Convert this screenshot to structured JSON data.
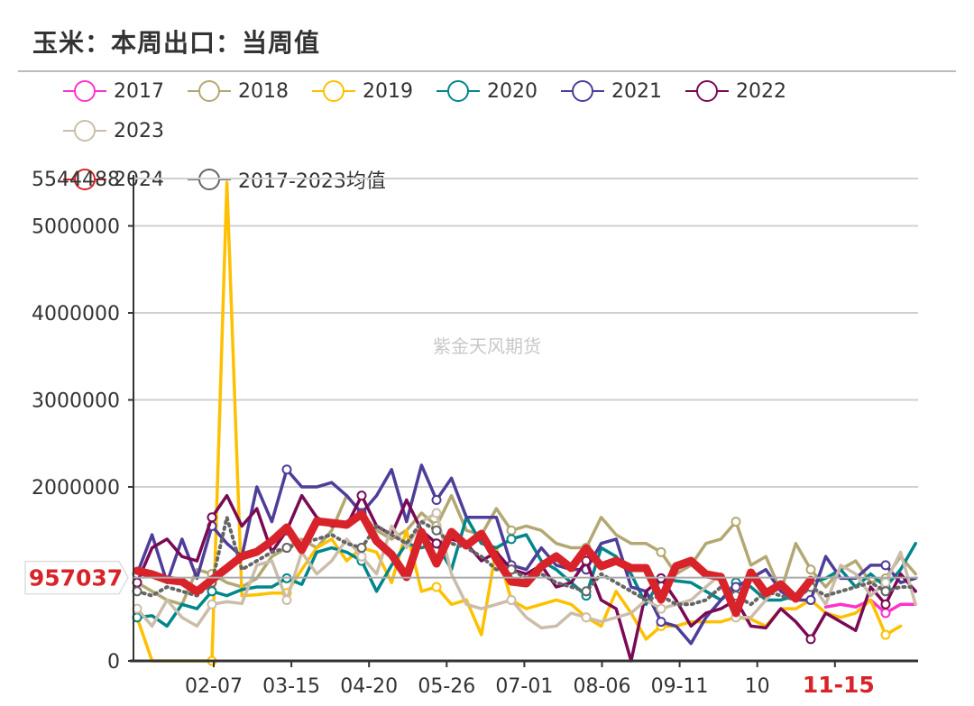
{
  "title": "玉米：本周出口：当周值",
  "watermark": "紫金天风期货",
  "legend": [
    {
      "name": "2017",
      "color": "#FF33CC"
    },
    {
      "name": "2018",
      "color": "#B3A872"
    },
    {
      "name": "2019",
      "color": "#FFC000"
    },
    {
      "name": "2020",
      "color": "#00868B"
    },
    {
      "name": "2021",
      "color": "#4E3D99"
    },
    {
      "name": "2022",
      "color": "#7A0A55"
    },
    {
      "name": "2023",
      "color": "#CBBDAA"
    },
    {
      "name": "2024",
      "color": "#D9232A"
    },
    {
      "name": "2017-2023均值",
      "color": "#666666"
    }
  ],
  "chart_data": {
    "type": "line",
    "title": "玉米：本周出口：当周值",
    "ylim": [
      0,
      5544488
    ],
    "y_ticks": [
      "0",
      "2000000",
      "3000000",
      "4000000",
      "5000000",
      "5544488"
    ],
    "x_tick_labels": [
      "02-07",
      "03-15",
      "04-20",
      "05-26",
      "07-01",
      "08-06",
      "09-11",
      "10",
      "11-15"
    ],
    "highlighted_x_label": "11-15",
    "pointer_value": "957037",
    "grid": true,
    "legend_position": "top",
    "series": [
      {
        "name": "2017",
        "values": [
          null,
          null,
          null,
          null,
          null,
          null,
          null,
          null,
          null,
          null,
          null,
          null,
          null,
          null,
          null,
          null,
          null,
          null,
          null,
          null,
          null,
          null,
          null,
          null,
          null,
          null,
          null,
          null,
          null,
          null,
          null,
          null,
          null,
          null,
          null,
          null,
          null,
          null,
          null,
          null,
          null,
          null,
          null,
          null,
          null,
          null,
          620000,
          650000,
          620000,
          700000,
          550000,
          650000,
          650000
        ]
      },
      {
        "name": "2018",
        "values": [
          900000,
          800000,
          700000,
          650000,
          1050000,
          1000000,
          900000,
          850000,
          950000,
          1200000,
          1300000,
          1400000,
          1300000,
          1500000,
          1900000,
          1700000,
          1500000,
          1400000,
          1500000,
          1700000,
          1550000,
          1900000,
          1500000,
          1450000,
          1750000,
          1500000,
          1550000,
          1500000,
          1350000,
          1300000,
          1300000,
          1650000,
          1450000,
          1350000,
          1350000,
          1250000,
          1000000,
          1100000,
          1350000,
          1400000,
          1600000,
          1100000,
          1200000,
          800000,
          1350000,
          1050000,
          850000,
          1050000,
          1150000,
          900000,
          950000,
          1200000,
          1000000
        ]
      },
      {
        "name": "2019",
        "values": [
          500000,
          0,
          0,
          0,
          0,
          0,
          5500000,
          750000,
          760000,
          780000,
          780000,
          1050000,
          1300000,
          1400000,
          1150000,
          1300000,
          1250000,
          900000,
          1500000,
          800000,
          850000,
          650000,
          700000,
          300000,
          1300000,
          700000,
          600000,
          650000,
          700000,
          650000,
          500000,
          400000,
          800000,
          550000,
          250000,
          400000,
          400000,
          450000,
          450000,
          450000,
          500000,
          480000,
          400000,
          600000,
          600000,
          700000,
          550000,
          500000,
          550000,
          700000,
          300000,
          400000,
          null
        ]
      },
      {
        "name": "2020",
        "values": [
          500000,
          520000,
          400000,
          650000,
          600000,
          800000,
          750000,
          820000,
          850000,
          850000,
          950000,
          880000,
          1250000,
          1300000,
          1250000,
          1150000,
          800000,
          1100000,
          1350000,
          1300000,
          1350000,
          1050000,
          1650000,
          1350000,
          1300000,
          1400000,
          1450000,
          1150000,
          1050000,
          900000,
          750000,
          1300000,
          1200000,
          1000000,
          650000,
          950000,
          920000,
          900000,
          800000,
          700000,
          900000,
          850000,
          700000,
          700000,
          750000,
          900000,
          950000,
          1050000,
          850000,
          1000000,
          850000,
          1050000,
          1350000
        ]
      },
      {
        "name": "2021",
        "values": [
          1000000,
          1450000,
          900000,
          1400000,
          950000,
          1550000,
          1350000,
          1200000,
          2000000,
          1600000,
          2200000,
          2000000,
          2000000,
          2050000,
          1900000,
          1700000,
          1900000,
          2200000,
          1600000,
          2250000,
          1850000,
          2100000,
          1650000,
          1650000,
          1650000,
          1100000,
          1050000,
          1300000,
          1100000,
          1050000,
          1050000,
          1350000,
          1400000,
          850000,
          800000,
          450000,
          400000,
          200000,
          500000,
          700000,
          850000,
          950000,
          1050000,
          800000,
          700000,
          700000,
          1200000,
          950000,
          950000,
          1100000,
          1100000,
          900000,
          950000
        ]
      },
      {
        "name": "2022",
        "values": [
          900000,
          1300000,
          1400000,
          1200000,
          1150000,
          1650000,
          1900000,
          1550000,
          1750000,
          1250000,
          1500000,
          1900000,
          1650000,
          1550000,
          1550000,
          1900000,
          1550000,
          1450000,
          1850000,
          1500000,
          1350000,
          1400000,
          1350000,
          1150000,
          1250000,
          1050000,
          1000000,
          1100000,
          850000,
          900000,
          1150000,
          700000,
          600000,
          0,
          800000,
          950000,
          700000,
          400000,
          550000,
          600000,
          700000,
          400000,
          380000,
          600000,
          450000,
          250000,
          550000,
          450000,
          350000,
          850000,
          650000,
          1000000,
          800000
        ]
      },
      {
        "name": "2023",
        "values": [
          600000,
          400000,
          700000,
          500000,
          400000,
          650000,
          680000,
          660000,
          1100000,
          1150000,
          700000,
          1250000,
          1000000,
          1150000,
          1400000,
          1200000,
          1000000,
          1550000,
          1300000,
          1600000,
          1700000,
          1000000,
          650000,
          600000,
          650000,
          700000,
          500000,
          380000,
          400000,
          550000,
          500000,
          450000,
          500000,
          550000,
          700000,
          600000,
          650000,
          700000,
          850000,
          1000000,
          500000,
          500000,
          700000,
          900000,
          750000,
          900000,
          650000,
          1100000,
          1000000,
          750000,
          900000,
          1250000,
          650000
        ]
      },
      {
        "name": "2024",
        "values": [
          1036000,
          995000,
          933000,
          912000,
          798000,
          933000,
          1067000,
          1202000,
          1254000,
          1378000,
          1534000,
          1275000,
          1606000,
          1586000,
          1565000,
          1689000,
          1378000,
          1223000,
          964000,
          1482000,
          1119000,
          1482000,
          1326000,
          1461000,
          1171000,
          912000,
          891000,
          1088000,
          1202000,
          1067000,
          1295000,
          1088000,
          1150000,
          1067000,
          1067000,
          705000,
          1088000,
          1150000,
          995000,
          964000,
          549000,
          1016000,
          777000,
          881000,
          715000,
          933000
        ]
      },
      {
        "name": "2017-2023均值",
        "values": [
          800000,
          750000,
          850000,
          800000,
          750000,
          900000,
          1650000,
          1050000,
          1150000,
          1250000,
          1300000,
          1350000,
          1400000,
          1450000,
          1350000,
          1300000,
          1550000,
          1450000,
          1350000,
          1600000,
          1500000,
          1350000,
          1300000,
          1200000,
          1050000,
          1050000,
          950000,
          1000000,
          900000,
          850000,
          800000,
          1000000,
          900000,
          800000,
          700000,
          750000,
          650000,
          650000,
          700000,
          850000,
          750000,
          650000,
          800000,
          750000,
          700000,
          850000,
          750000,
          800000,
          850000,
          900000,
          800000,
          850000,
          850000
        ]
      }
    ]
  }
}
